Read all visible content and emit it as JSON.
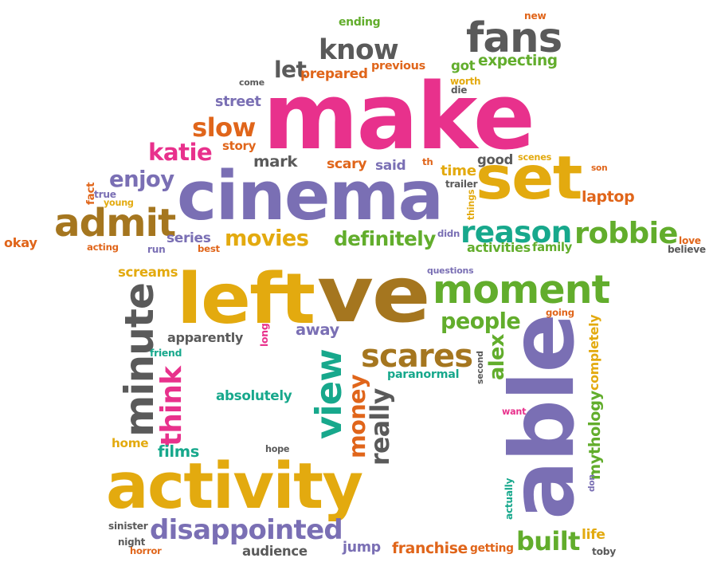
{
  "colors": {
    "pink": "#e8318c",
    "purple": "#7a6fb4",
    "gold": "#e3aa0f",
    "brown": "#a5761f",
    "green": "#62ad2c",
    "teal": "#17a88c",
    "gray": "#5a5a5a",
    "orange": "#e0651a"
  },
  "words": [
    {
      "id": "make",
      "text": "make",
      "color": "pink"
    },
    {
      "id": "cinema",
      "text": "cinema",
      "color": "purple"
    },
    {
      "id": "activity",
      "text": "activity",
      "color": "gold"
    },
    {
      "id": "ve",
      "text": "ve",
      "color": "brown"
    },
    {
      "id": "able",
      "text": "able",
      "color": "purple"
    },
    {
      "id": "left",
      "text": "left",
      "color": "gold"
    },
    {
      "id": "set",
      "text": "set",
      "color": "gold"
    },
    {
      "id": "fans",
      "text": "fans",
      "color": "gray"
    },
    {
      "id": "moment",
      "text": "moment",
      "color": "green"
    },
    {
      "id": "minute",
      "text": "minute",
      "color": "gray"
    },
    {
      "id": "admit",
      "text": "admit",
      "color": "brown"
    },
    {
      "id": "disappointed",
      "text": "disappointed",
      "color": "purple"
    },
    {
      "id": "robbie",
      "text": "robbie",
      "color": "green"
    },
    {
      "id": "reason",
      "text": "reason",
      "color": "teal"
    },
    {
      "id": "scares",
      "text": "scares",
      "color": "brown"
    },
    {
      "id": "know",
      "text": "know",
      "color": "gray"
    },
    {
      "id": "slow",
      "text": "slow",
      "color": "orange"
    },
    {
      "id": "view",
      "text": "view",
      "color": "teal"
    },
    {
      "id": "think",
      "text": "think",
      "color": "pink"
    },
    {
      "id": "people",
      "text": "people",
      "color": "green"
    },
    {
      "id": "movies",
      "text": "movies",
      "color": "gold"
    },
    {
      "id": "definitely",
      "text": "definitely",
      "color": "green"
    },
    {
      "id": "enjoy",
      "text": "enjoy",
      "color": "purple"
    },
    {
      "id": "katie",
      "text": "katie",
      "color": "pink"
    },
    {
      "id": "money",
      "text": "money",
      "color": "orange"
    },
    {
      "id": "really",
      "text": "really",
      "color": "gray"
    },
    {
      "id": "built",
      "text": "built",
      "color": "green"
    },
    {
      "id": "expecting",
      "text": "expecting",
      "color": "green"
    },
    {
      "id": "let",
      "text": "let",
      "color": "gray"
    },
    {
      "id": "laptop",
      "text": "laptop",
      "color": "orange"
    },
    {
      "id": "alex",
      "text": "alex",
      "color": "green"
    },
    {
      "id": "franchise",
      "text": "franchise",
      "color": "orange"
    },
    {
      "id": "prepared",
      "text": "prepared",
      "color": "orange"
    },
    {
      "id": "time",
      "text": "time",
      "color": "gold"
    },
    {
      "id": "away",
      "text": "away",
      "color": "purple"
    },
    {
      "id": "apparently",
      "text": "apparently",
      "color": "gray"
    },
    {
      "id": "mythology",
      "text": "mythology",
      "color": "green"
    },
    {
      "id": "completely",
      "text": "completely",
      "color": "gold"
    },
    {
      "id": "screams",
      "text": "screams",
      "color": "gold"
    },
    {
      "id": "absolutely",
      "text": "absolutely",
      "color": "teal"
    },
    {
      "id": "films",
      "text": "films",
      "color": "teal"
    },
    {
      "id": "audience",
      "text": "audience",
      "color": "gray"
    },
    {
      "id": "jump",
      "text": "jump",
      "color": "purple"
    },
    {
      "id": "paranormal",
      "text": "paranormal",
      "color": "teal"
    },
    {
      "id": "street",
      "text": "street",
      "color": "purple"
    },
    {
      "id": "mark",
      "text": "mark",
      "color": "gray"
    },
    {
      "id": "scary",
      "text": "scary",
      "color": "orange"
    },
    {
      "id": "said",
      "text": "said",
      "color": "purple"
    },
    {
      "id": "good",
      "text": "good",
      "color": "gray"
    },
    {
      "id": "series",
      "text": "series",
      "color": "purple"
    },
    {
      "id": "activities",
      "text": "activities",
      "color": "green"
    },
    {
      "id": "family",
      "text": "family",
      "color": "green"
    },
    {
      "id": "life",
      "text": "life",
      "color": "gold"
    },
    {
      "id": "getting",
      "text": "getting",
      "color": "orange"
    },
    {
      "id": "home",
      "text": "home",
      "color": "gold"
    },
    {
      "id": "story",
      "text": "story",
      "color": "orange"
    },
    {
      "id": "previous",
      "text": "previous",
      "color": "orange"
    },
    {
      "id": "got",
      "text": "got",
      "color": "green"
    },
    {
      "id": "ending",
      "text": "ending",
      "color": "green"
    },
    {
      "id": "new",
      "text": "new",
      "color": "orange"
    },
    {
      "id": "worth",
      "text": "worth",
      "color": "gold"
    },
    {
      "id": "die",
      "text": "die",
      "color": "gray"
    },
    {
      "id": "come",
      "text": "come",
      "color": "gray"
    },
    {
      "id": "th",
      "text": "th",
      "color": "orange"
    },
    {
      "id": "scenes",
      "text": "scenes",
      "color": "gold"
    },
    {
      "id": "son",
      "text": "son",
      "color": "orange"
    },
    {
      "id": "trailer",
      "text": "trailer",
      "color": "gray"
    },
    {
      "id": "things",
      "text": "things",
      "color": "gold"
    },
    {
      "id": "didn",
      "text": "didn",
      "color": "purple"
    },
    {
      "id": "best",
      "text": "best",
      "color": "orange"
    },
    {
      "id": "acting",
      "text": "acting",
      "color": "orange"
    },
    {
      "id": "okay",
      "text": "okay",
      "color": "orange"
    },
    {
      "id": "fact",
      "text": "fact",
      "color": "orange"
    },
    {
      "id": "true",
      "text": "true",
      "color": "purple"
    },
    {
      "id": "young",
      "text": "young",
      "color": "gold"
    },
    {
      "id": "run",
      "text": "run",
      "color": "purple"
    },
    {
      "id": "love",
      "text": "love",
      "color": "orange"
    },
    {
      "id": "believe",
      "text": "believe",
      "color": "gray"
    },
    {
      "id": "questions",
      "text": "questions",
      "color": "purple"
    },
    {
      "id": "going",
      "text": "going",
      "color": "orange"
    },
    {
      "id": "long",
      "text": "long",
      "color": "pink"
    },
    {
      "id": "friend",
      "text": "friend",
      "color": "teal"
    },
    {
      "id": "second",
      "text": "second",
      "color": "gray"
    },
    {
      "id": "want",
      "text": "want",
      "color": "pink"
    },
    {
      "id": "hope",
      "text": "hope",
      "color": "gray"
    },
    {
      "id": "sinister",
      "text": "sinister",
      "color": "gray"
    },
    {
      "id": "night",
      "text": "night",
      "color": "gray"
    },
    {
      "id": "horror",
      "text": "horror",
      "color": "orange"
    },
    {
      "id": "actually",
      "text": "actually",
      "color": "teal"
    },
    {
      "id": "don",
      "text": "don",
      "color": "purple"
    },
    {
      "id": "toby",
      "text": "toby",
      "color": "gray"
    }
  ]
}
